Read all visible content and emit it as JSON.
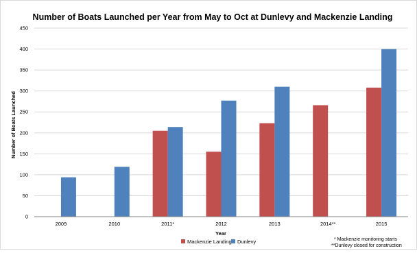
{
  "chart_data": {
    "type": "bar",
    "title": "Number of Boats Launched per Year from May to Oct at Dunlevy and Mackenzie Landing",
    "xlabel": "Year",
    "ylabel": "Number of Boats Launched",
    "categories": [
      "2009",
      "2010",
      "2011*",
      "2012",
      "2013",
      "2014**",
      "2015"
    ],
    "ylim": [
      0,
      450
    ],
    "yticks": [
      0,
      50,
      100,
      150,
      200,
      250,
      300,
      350,
      400,
      450
    ],
    "grid": true,
    "legend_position": "bottom",
    "series": [
      {
        "name": "Mackenzie Landing",
        "color": "#c0504d",
        "values": [
          null,
          null,
          205,
          155,
          223,
          266,
          308
        ]
      },
      {
        "name": "Dunlevy",
        "color": "#4f81bd",
        "values": [
          94,
          119,
          214,
          277,
          310,
          null,
          400
        ]
      }
    ],
    "footnotes": [
      "* Mackenzie monitoring starts",
      "**Dunlevy closed for construction"
    ]
  }
}
